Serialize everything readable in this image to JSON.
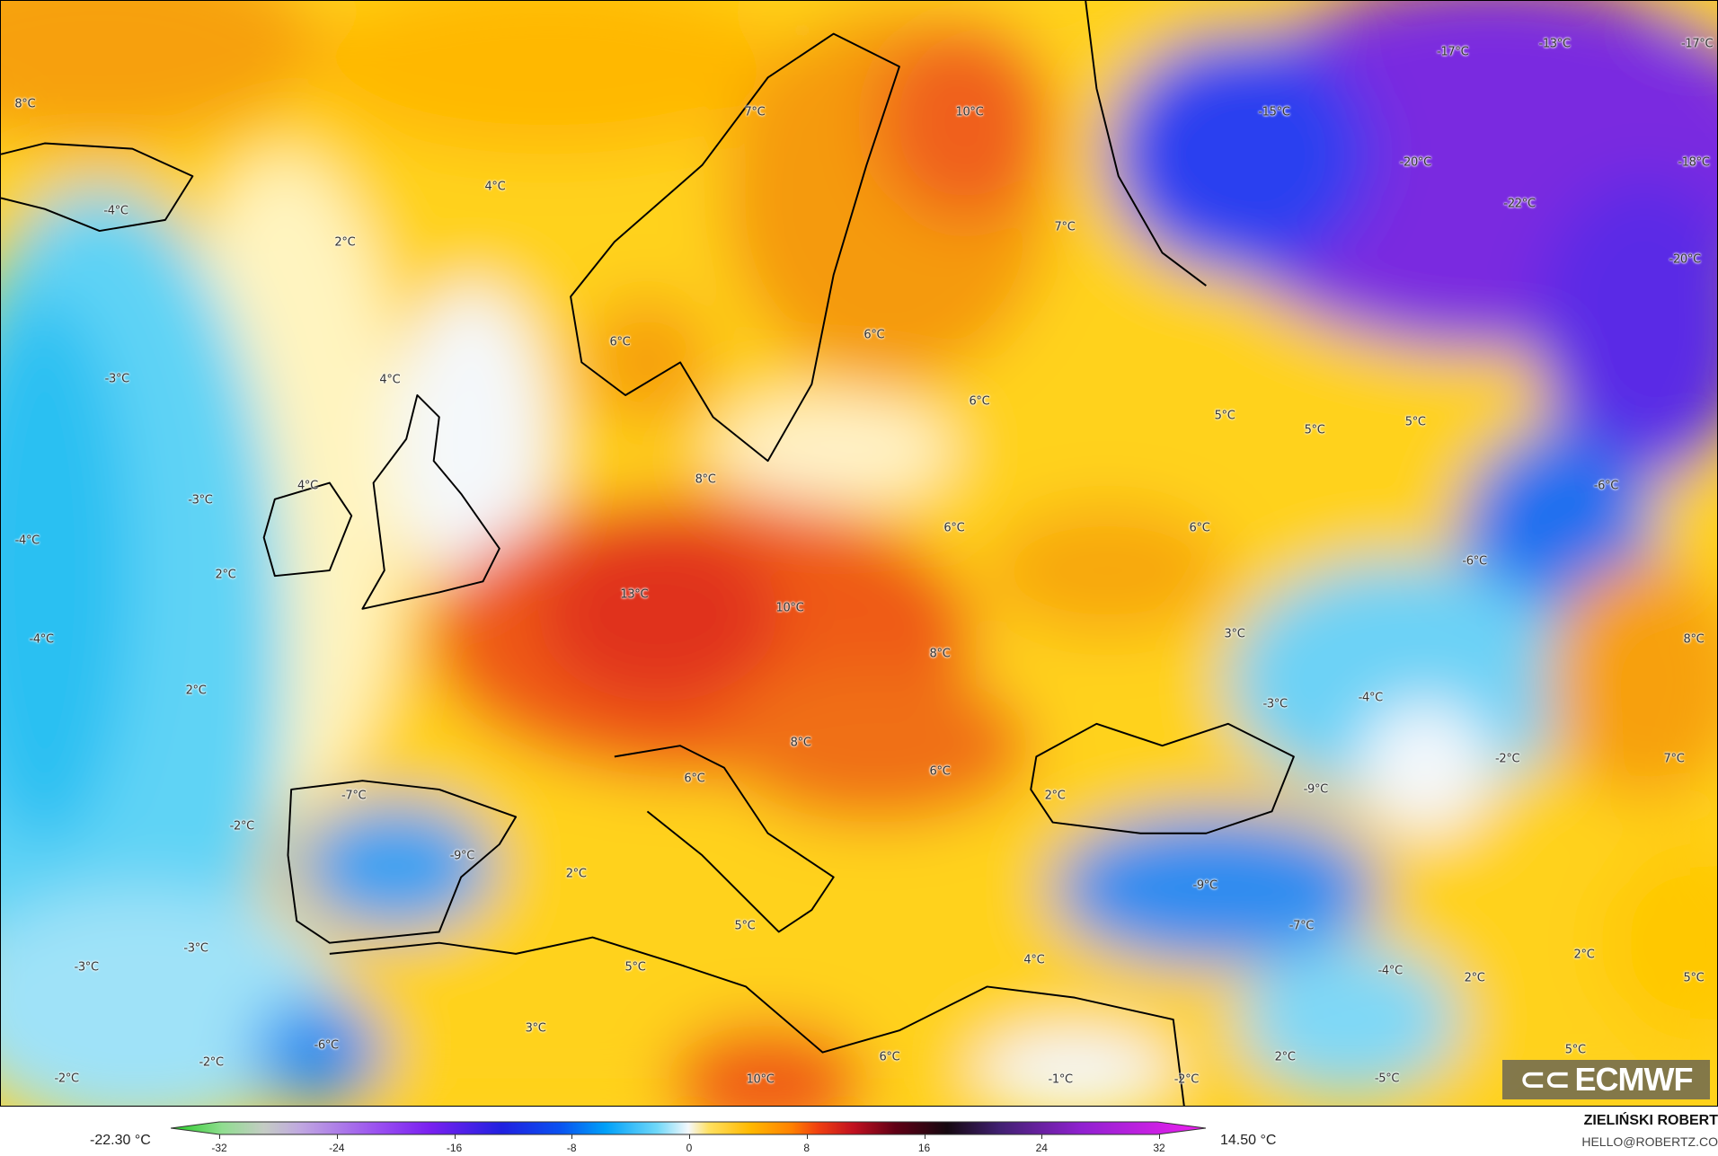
{
  "map": {
    "model": "ECMWF",
    "variable_unit": "°C",
    "labels": [
      "8°C",
      "-4°C",
      "4°C",
      "2°C",
      "7°C",
      "10°C",
      "-17°C",
      "-13°C",
      "-17°C",
      "-15°C",
      "-20°C",
      "-18°C",
      "-22°C",
      "-20°C",
      "7°C",
      "6°C",
      "6°C",
      "4°C",
      "-3°C",
      "6°C",
      "5°C",
      "5°C",
      "5°C",
      "4°C",
      "8°C",
      "-3°C",
      "-6°C",
      "-4°C",
      "6°C",
      "6°C",
      "2°C",
      "-6°C",
      "13°C",
      "10°C",
      "-4°C",
      "3°C",
      "8°C",
      "8°C",
      "2°C",
      "-3°C",
      "-4°C",
      "-2°C",
      "8°C",
      "7°C",
      "6°C",
      "6°C",
      "-7°C",
      "2°C",
      "-9°C",
      "-2°C",
      "-9°C",
      "2°C",
      "-9°C",
      "5°C",
      "-7°C",
      "-3°C",
      "4°C",
      "2°C",
      "-3°C",
      "5°C",
      "-4°C",
      "2°C",
      "5°C",
      "3°C",
      "6°C",
      "-6°C",
      "2°C",
      "5°C",
      "-2°C",
      "-2°C",
      "10°C",
      "-1°C",
      "-2°C",
      "-5°C"
    ],
    "colors": {
      "warm_max": "#e8401a",
      "neutral": "#ffd21a",
      "cold": "#5fd3f5",
      "very_cold": "#7a2be0"
    }
  },
  "logo": {
    "text": "ECMWF"
  },
  "legend": {
    "min_value": "-22.30 °C",
    "max_value": "14.50 °C",
    "ticks": [
      "-32",
      "-24",
      "-16",
      "-8",
      "0",
      "8",
      "16",
      "24",
      "32"
    ],
    "range": [
      -32,
      32
    ]
  },
  "credit": {
    "author": "ZIELIŃSKI ROBERT",
    "email": "HELLO@ROBERTZ.CO"
  }
}
